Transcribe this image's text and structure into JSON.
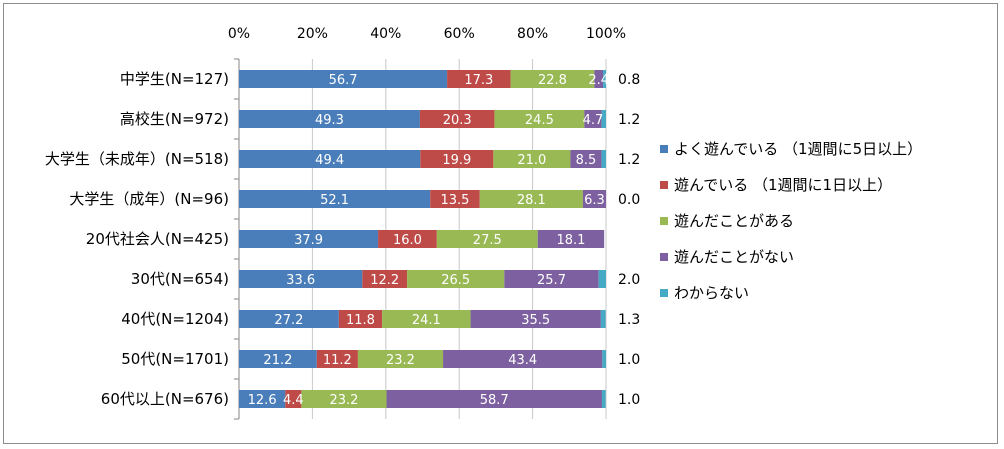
{
  "chart_data": {
    "type": "bar",
    "orientation": "horizontal",
    "stacked": true,
    "percent": true,
    "x_ticks": [
      "0%",
      "20%",
      "40%",
      "60%",
      "80%",
      "100%"
    ],
    "xlim": [
      0,
      100
    ],
    "x_axis_position": "top",
    "grid": true,
    "legend_position": "right",
    "categories": [
      "中学生(N=127)",
      "高校生(N=972)",
      "大学生（未成年）(N=518)",
      "大学生（成年）(N=96)",
      "20代社会人(N=425)",
      "30代(N=654)",
      "40代(N=1204)",
      "50代(N=1701)",
      "60代以上(N=676)"
    ],
    "series": [
      {
        "name": "よく遊んでいる （1週間に5日以上）",
        "color": "#4a7ebb",
        "values": [
          56.7,
          49.3,
          49.4,
          52.1,
          37.9,
          33.6,
          27.2,
          21.2,
          12.6
        ],
        "labels": [
          "56.7",
          "49.3",
          "49.4",
          "52.1",
          "37.9",
          "33.6",
          "27.2",
          "21.2",
          "12.6"
        ]
      },
      {
        "name": "遊んでいる （1週間に1日以上）",
        "color": "#be4b48",
        "values": [
          17.3,
          20.3,
          19.9,
          13.5,
          16.0,
          12.2,
          11.8,
          11.2,
          4.4
        ],
        "labels": [
          "17.3",
          "20.3",
          "19.9",
          "13.5",
          "16.0",
          "12.2",
          "11.8",
          "11.2",
          "4.4"
        ]
      },
      {
        "name": "遊んだことがある",
        "color": "#98b954",
        "values": [
          22.8,
          24.5,
          21.0,
          28.1,
          27.5,
          26.5,
          24.1,
          23.2,
          23.2
        ],
        "labels": [
          "22.8",
          "24.5",
          "21.0",
          "28.1",
          "27.5",
          "26.5",
          "24.1",
          "23.2",
          "23.2"
        ]
      },
      {
        "name": "遊んだことがない",
        "color": "#7d60a0",
        "values": [
          2.4,
          4.7,
          8.5,
          6.3,
          18.1,
          25.7,
          35.5,
          43.4,
          58.7
        ],
        "labels": [
          "2.4",
          "4.7",
          "8.5",
          "6.3",
          "18.1",
          "25.7",
          "35.5",
          "43.4",
          "58.7"
        ]
      },
      {
        "name": "わからない",
        "color": "#46aac5",
        "values": [
          0.8,
          1.2,
          1.2,
          0.0,
          0.0,
          2.0,
          1.3,
          1.0,
          1.0
        ],
        "labels": [
          "0.8",
          "1.2",
          "1.2",
          "0.0",
          "",
          "2.0",
          "1.3",
          "1.0",
          "1.0"
        ]
      }
    ]
  }
}
